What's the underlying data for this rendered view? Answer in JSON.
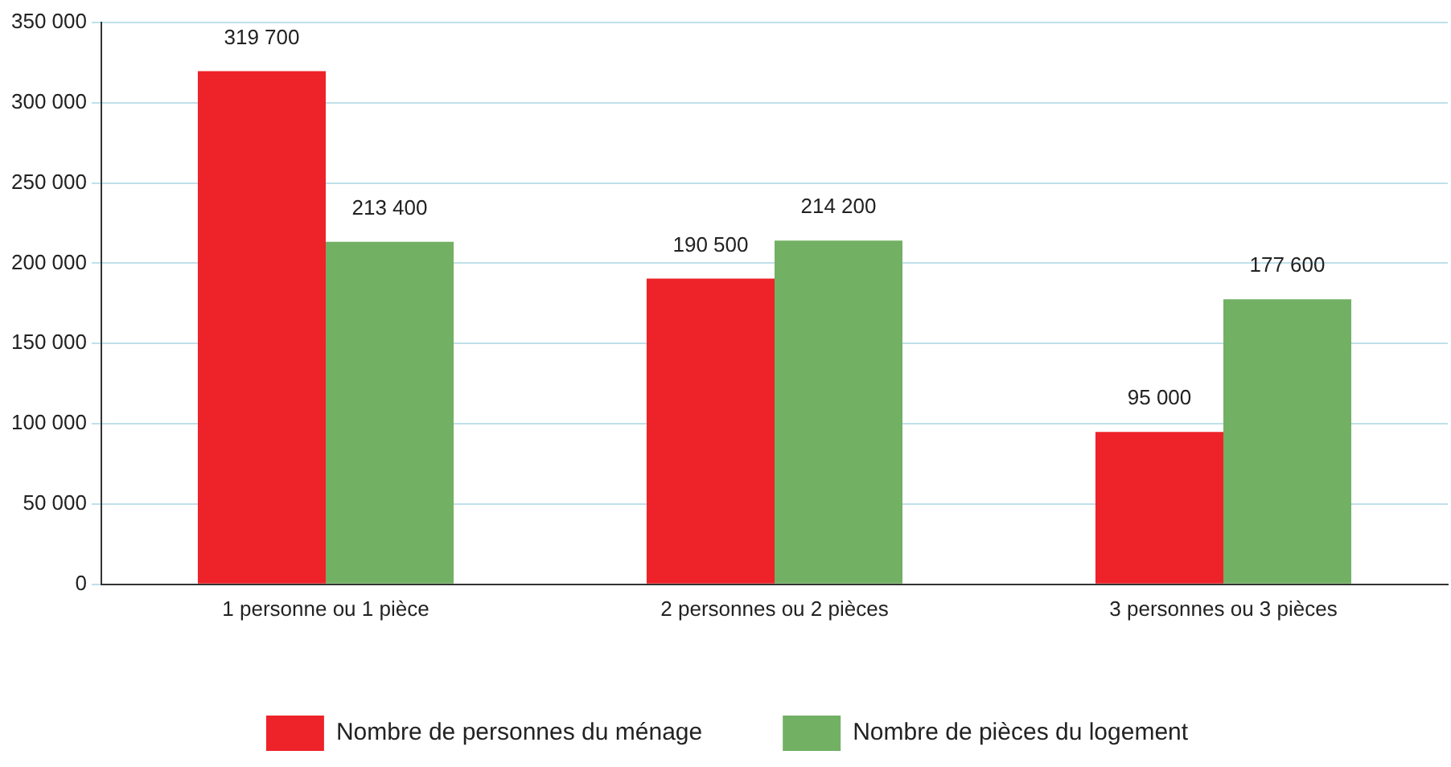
{
  "chart_data": {
    "type": "bar",
    "categories": [
      "1 personne ou 1 pièce",
      "2 personnes ou 2 pièces",
      "3 personnes ou 3 pièces"
    ],
    "series": [
      {
        "name": "Nombre de personnes du ménage",
        "color": "#ee2229",
        "values": [
          319700,
          190500,
          95000
        ],
        "value_labels": [
          "319 700",
          "190 500",
          "95 000"
        ]
      },
      {
        "name": "Nombre de pièces du logement",
        "color": "#72b063",
        "values": [
          213400,
          214200,
          177600
        ],
        "value_labels": [
          "213 400",
          "214 200",
          "177 600"
        ]
      }
    ],
    "ylim": [
      0,
      350000
    ],
    "yticks": [
      {
        "value": 0,
        "label": "0"
      },
      {
        "value": 50000,
        "label": "50 000"
      },
      {
        "value": 100000,
        "label": "100 000"
      },
      {
        "value": 150000,
        "label": "150 000"
      },
      {
        "value": 200000,
        "label": "200 000"
      },
      {
        "value": 250000,
        "label": "250 000"
      },
      {
        "value": 300000,
        "label": "300 000"
      },
      {
        "value": 350000,
        "label": "350 000"
      }
    ],
    "grid": "y",
    "legend": "bottom"
  }
}
